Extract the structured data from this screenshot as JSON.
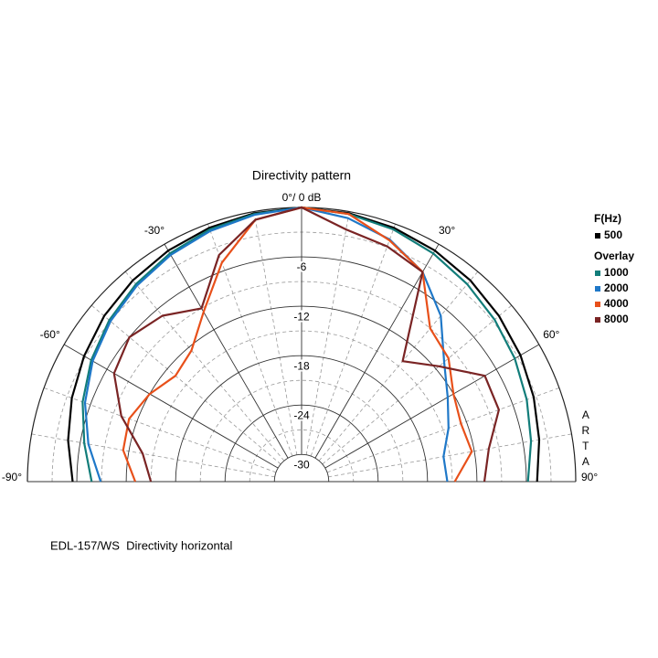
{
  "chart_data": {
    "type": "polar",
    "title": "Directivity pattern",
    "legend_title": "F(Hz)",
    "overlay_title": "Overlay",
    "footer": "EDL-157/WS  Directivity horizontal",
    "watermark": "ARTA",
    "theta": [
      -90,
      -80,
      -70,
      -60,
      -50,
      -40,
      -30,
      -20,
      -10,
      0,
      10,
      20,
      30,
      40,
      50,
      60,
      70,
      80,
      90
    ],
    "thetalim": [
      -90,
      90
    ],
    "thetaticks": [
      {
        "value": -90,
        "label": "-90°"
      },
      {
        "value": -60,
        "label": "-60°"
      },
      {
        "value": -30,
        "label": "-30°"
      },
      {
        "value": 0,
        "label": "0°/ 0 dB"
      },
      {
        "value": 30,
        "label": "30°"
      },
      {
        "value": 60,
        "label": "60°"
      },
      {
        "value": 90,
        "label": "90°"
      }
    ],
    "thetaminor": [
      -80,
      -70,
      -50,
      -40,
      -20,
      -10,
      10,
      20,
      40,
      50,
      70,
      80
    ],
    "rlim": [
      -33.3,
      0
    ],
    "rticks": [
      -6,
      -12,
      -18,
      -24,
      -30
    ],
    "rminor": [
      -3,
      -9,
      -15,
      -21,
      -27
    ],
    "grid": true,
    "series": [
      {
        "name": "500",
        "color": "#000000",
        "values": [
          -5.5,
          -4.5,
          -3.6,
          -2.8,
          -2,
          -1.4,
          -0.9,
          -0.5,
          -0.2,
          0,
          -0.2,
          -0.5,
          -0.9,
          -1.4,
          -2,
          -2.6,
          -3.3,
          -4,
          -4.7
        ]
      },
      {
        "name": "1000",
        "color": "#127d7a",
        "values": [
          -7.8,
          -6.5,
          -5,
          -3.8,
          -2.8,
          -2,
          -1.3,
          -0.7,
          -0.3,
          0,
          -0.3,
          -0.7,
          -1.3,
          -2,
          -2.7,
          -3.4,
          -4.2,
          -5,
          -5.8
        ]
      },
      {
        "name": "2000",
        "color": "#1f78c8",
        "values": [
          -8.9,
          -7,
          -5.3,
          -4,
          -3,
          -2.2,
          -1.5,
          -0.9,
          -0.4,
          0,
          -0.8,
          -2,
          -3.9,
          -7,
          -10.7,
          -12.8,
          -14.3,
          -15.8,
          -15.6
        ]
      },
      {
        "name": "4000",
        "color": "#e8501a",
        "values": [
          -13.1,
          -11.3,
          -11,
          -12,
          -13.3,
          -12.5,
          -9.5,
          -5,
          -1,
          0,
          -0.3,
          -2.1,
          -3.9,
          -9,
          -10,
          -12,
          -12.7,
          -12.3,
          -14.7
        ]
      },
      {
        "name": "8000",
        "color": "#7a2424",
        "values": [
          -15,
          -13.7,
          -10,
          -7,
          -6,
          -7,
          -9,
          -4,
          -1,
          0,
          -2.2,
          -2.9,
          -3.9,
          -14.2,
          -11.5,
          -7.6,
          -7.8,
          -10.2,
          -11.1
        ]
      }
    ]
  }
}
